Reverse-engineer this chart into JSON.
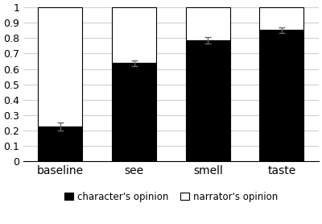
{
  "categories": [
    "baseline",
    "see",
    "smell",
    "taste"
  ],
  "char_values": [
    0.225,
    0.637,
    0.787,
    0.852
  ],
  "char_errors": [
    0.025,
    0.018,
    0.022,
    0.02
  ],
  "narrator_values": [
    0.775,
    0.363,
    0.213,
    0.148
  ],
  "ylim": [
    0,
    1.0
  ],
  "yticks": [
    0,
    0.1,
    0.2,
    0.3,
    0.4,
    0.5,
    0.6,
    0.7,
    0.8,
    0.9,
    1.0
  ],
  "ytick_labels": [
    "0",
    "0.1",
    "0.2",
    "0.3",
    "0.4",
    "0.5",
    "0.6",
    "0.7",
    "0.8",
    "0.9",
    "1"
  ],
  "char_color": "#000000",
  "narr_color": "#ffffff",
  "bar_edge_color": "#000000",
  "grid_color": "#d0d0d0",
  "legend_char": "character's opinion",
  "legend_narr": "narrator's opinion",
  "bar_width": 0.6,
  "figsize": [
    4.0,
    2.78
  ],
  "dpi": 100
}
